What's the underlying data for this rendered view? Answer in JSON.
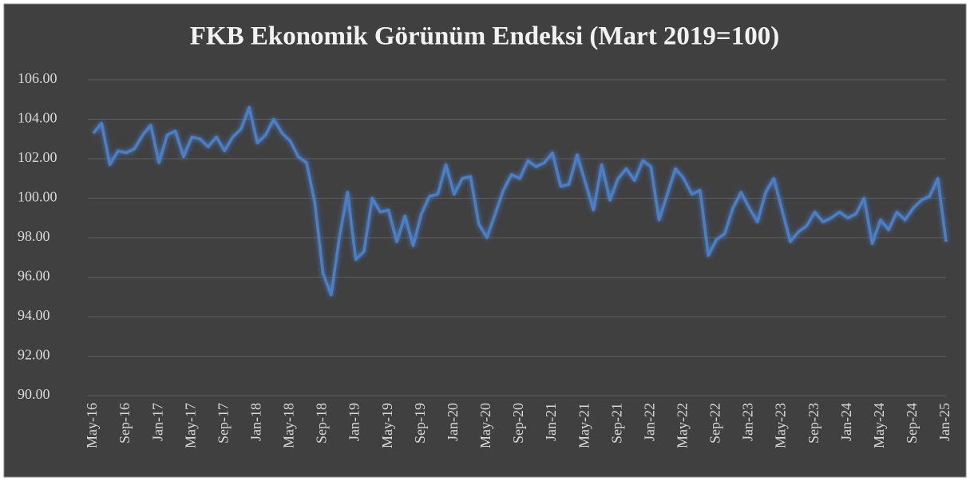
{
  "chart_data": {
    "type": "line",
    "title": "FKB Ekonomik Görünüm Endeksi (Mart 2019=100)",
    "categories": [
      "May-16",
      null,
      null,
      null,
      "Sep-16",
      null,
      null,
      null,
      "Jan-17",
      null,
      null,
      null,
      "May-17",
      null,
      null,
      null,
      "Sep-17",
      null,
      null,
      null,
      "Jan-18",
      null,
      null,
      null,
      "May-18",
      null,
      null,
      null,
      "Sep-18",
      null,
      null,
      null,
      "Jan-19",
      null,
      null,
      null,
      "May-19",
      null,
      null,
      null,
      "Sep-19",
      null,
      null,
      null,
      "Jan-20",
      null,
      null,
      null,
      "May-20",
      null,
      null,
      null,
      "Sep-20",
      null,
      null,
      null,
      "Jan-21",
      null,
      null,
      null,
      "May-21",
      null,
      null,
      null,
      "Sep-21",
      null,
      null,
      null,
      "Jan-22",
      null,
      null,
      null,
      "May-22",
      null,
      null,
      null,
      "Sep-22",
      null,
      null,
      null,
      "Jan-23",
      null,
      null,
      null,
      "May-23",
      null,
      null,
      null,
      "Sep-23",
      null,
      null,
      null,
      "Jan-24",
      null,
      null,
      null,
      "May-24",
      null,
      null,
      null,
      "Sep-24",
      null,
      null,
      null,
      "Jan-25"
    ],
    "values": [
      103.3,
      103.8,
      101.7,
      102.4,
      102.3,
      102.5,
      103.2,
      103.7,
      101.8,
      103.2,
      103.4,
      102.1,
      103.1,
      103.0,
      102.6,
      103.1,
      102.4,
      103.1,
      103.5,
      104.6,
      102.8,
      103.2,
      104.0,
      103.3,
      102.9,
      102.1,
      101.8,
      99.8,
      96.2,
      95.1,
      98.0,
      100.3,
      96.9,
      97.3,
      100.0,
      99.3,
      99.4,
      97.8,
      99.1,
      97.6,
      99.2,
      100.1,
      100.2,
      101.7,
      100.2,
      101.0,
      101.1,
      98.7,
      98.0,
      99.2,
      100.4,
      101.2,
      101.0,
      101.9,
      101.6,
      101.8,
      102.3,
      100.6,
      100.7,
      102.2,
      100.8,
      99.4,
      101.7,
      99.9,
      101.0,
      101.5,
      100.9,
      101.9,
      101.6,
      98.9,
      100.2,
      101.5,
      101.0,
      100.2,
      100.4,
      97.1,
      97.9,
      98.2,
      99.5,
      100.3,
      99.5,
      98.8,
      100.3,
      101.0,
      99.4,
      97.8,
      98.3,
      98.6,
      99.3,
      98.8,
      99.0,
      99.3,
      99.0,
      99.2,
      100.0,
      97.7,
      98.9,
      98.4,
      99.3,
      98.9,
      99.5,
      99.9,
      100.1,
      101.0,
      97.8
    ],
    "color": "#4a7fc8",
    "ylim": [
      90,
      106
    ],
    "yticks": [
      {
        "value": 90,
        "label": "90.00"
      },
      {
        "value": 92,
        "label": "92.00"
      },
      {
        "value": 94,
        "label": "94.00"
      },
      {
        "value": 96,
        "label": "96.00"
      },
      {
        "value": 98,
        "label": "98.00"
      },
      {
        "value": 100,
        "label": "100.00"
      },
      {
        "value": 102,
        "label": "102.00"
      },
      {
        "value": 104,
        "label": "104.00"
      },
      {
        "value": 106,
        "label": "106.00"
      }
    ],
    "grid": true
  }
}
